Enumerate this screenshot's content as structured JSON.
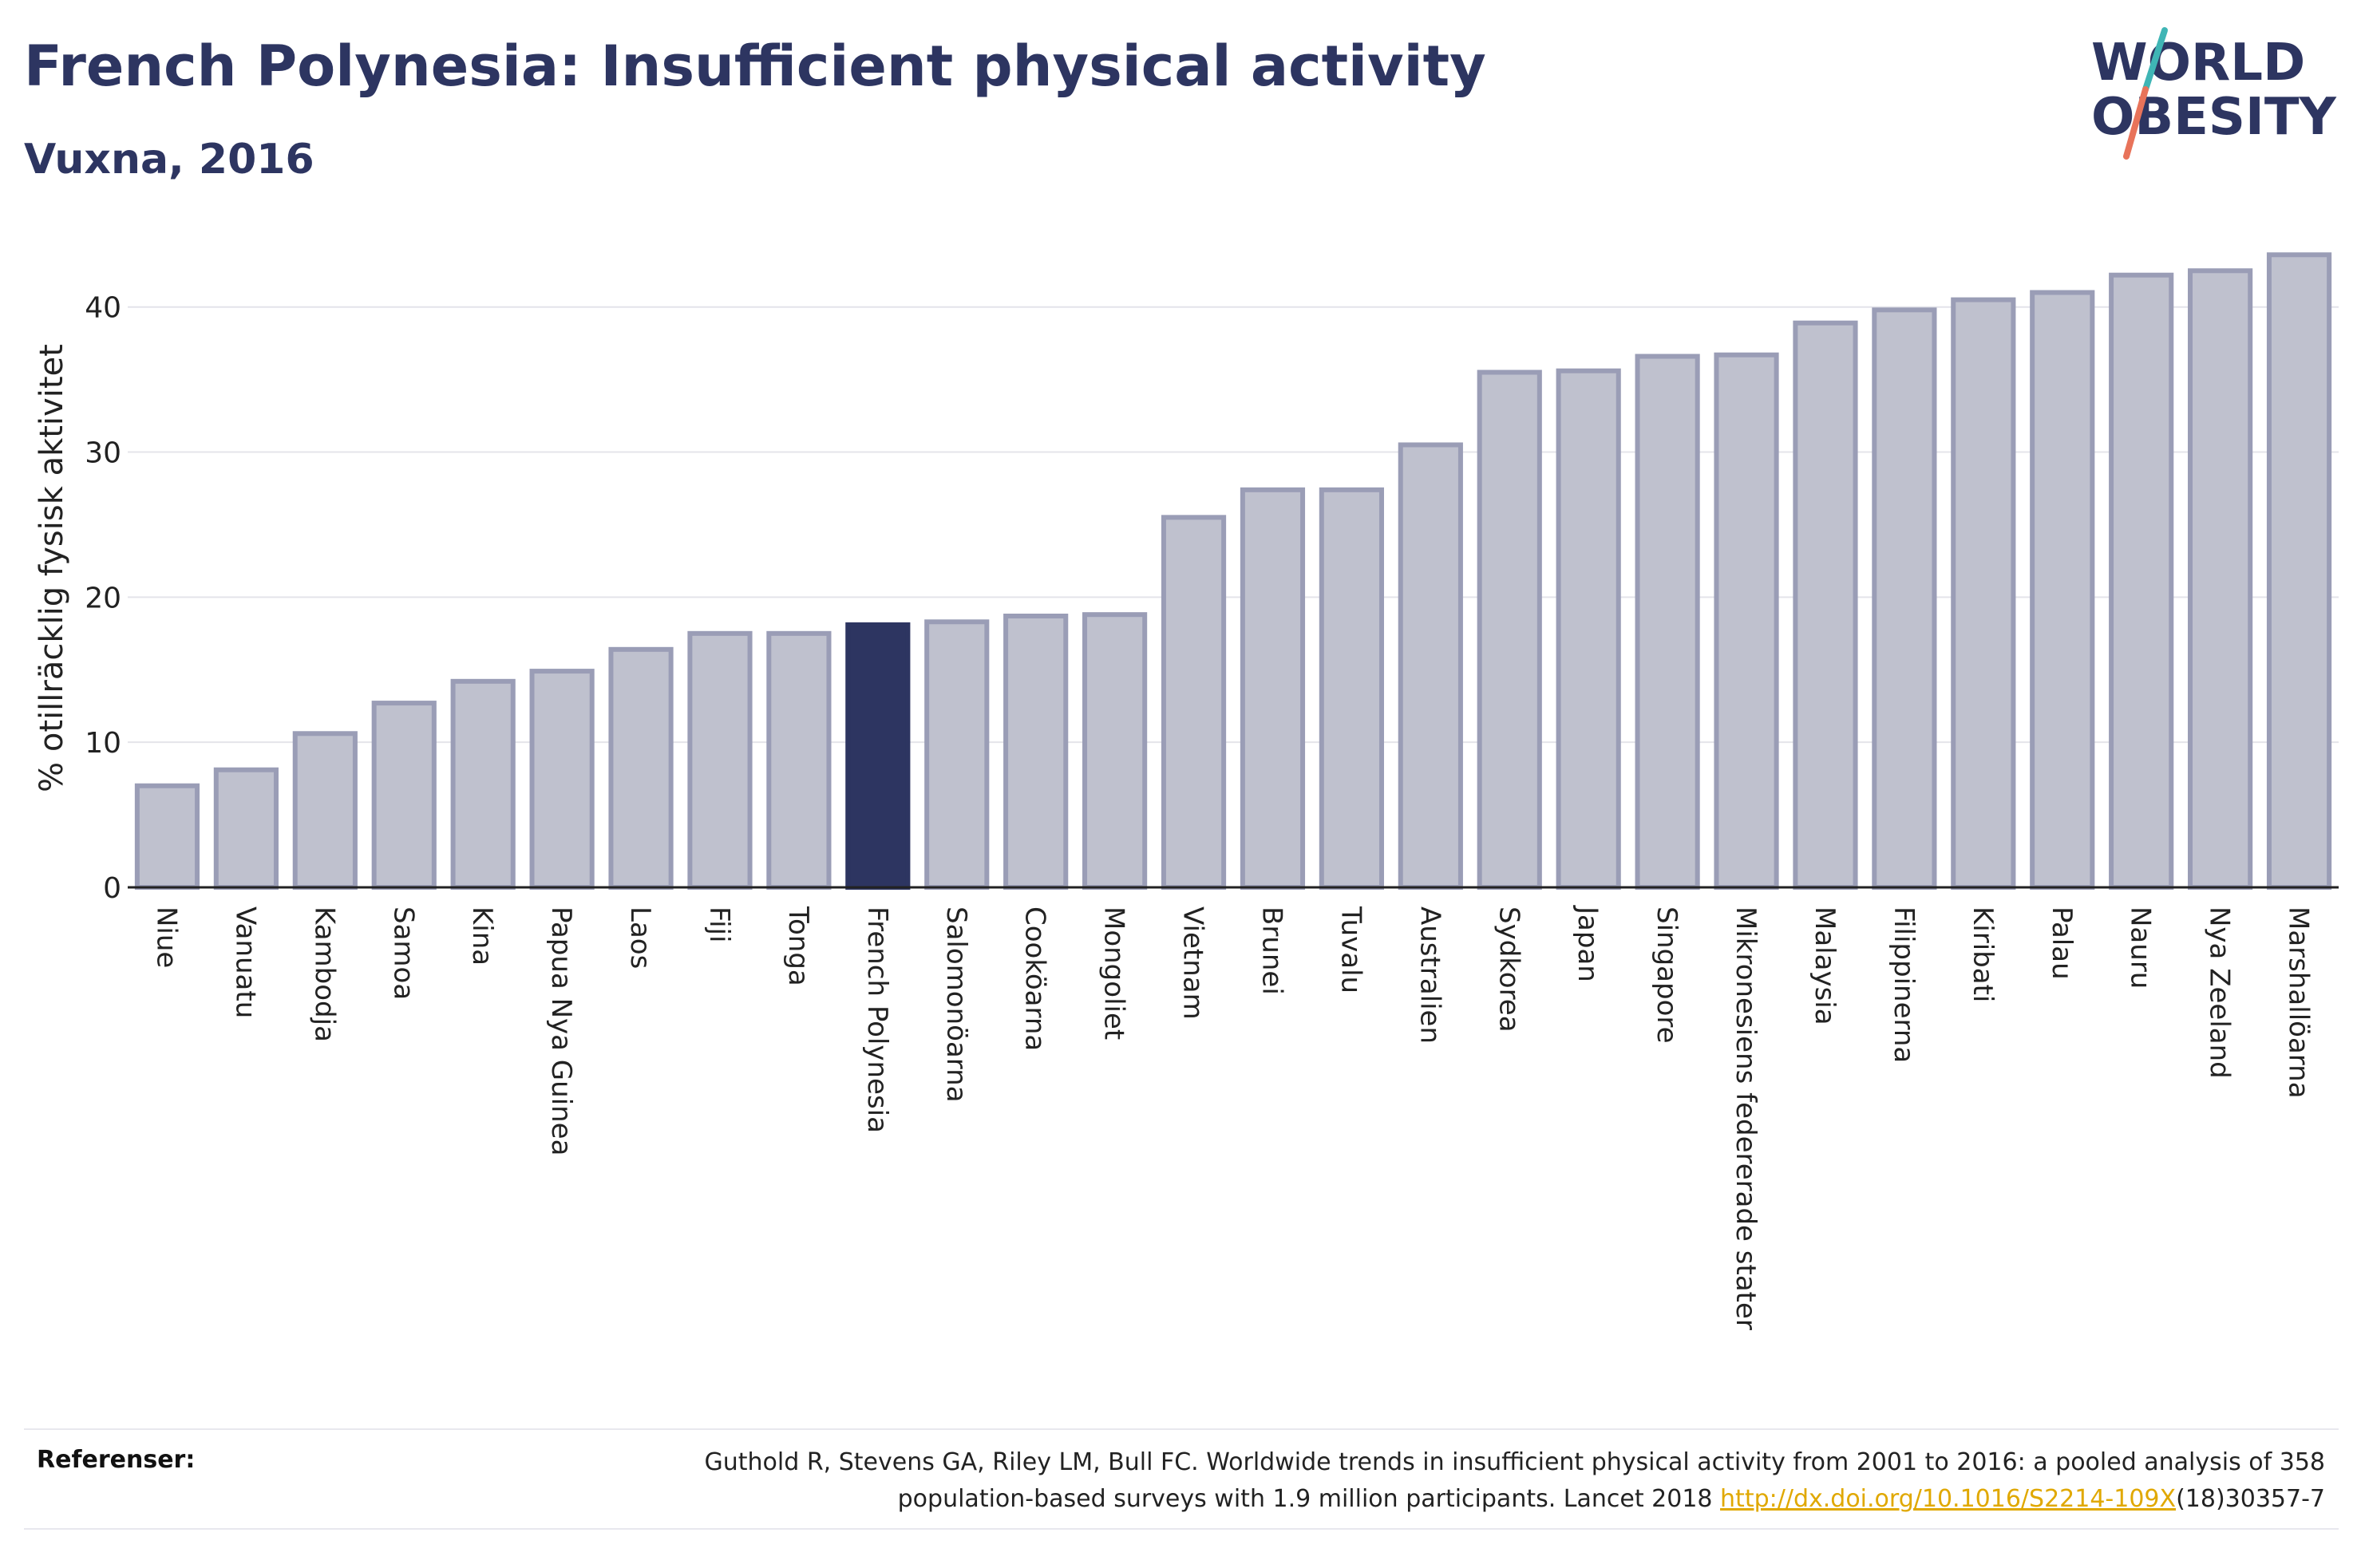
{
  "header": {
    "title": "French Polynesia: Insufficient physical activity",
    "subtitle": "Vuxna, 2016"
  },
  "logo": {
    "line1": "WORLD",
    "line2": "OBESITY",
    "slash_colors": [
      "#3fb5b5",
      "#e8735a"
    ]
  },
  "colors": {
    "highlight": "#2d3561",
    "bar": "#bfc1ce",
    "bar_border": "#9a9db6",
    "text": "#2d3561"
  },
  "chart_data": {
    "type": "bar",
    "title": "French Polynesia: Insufficient physical activity",
    "subtitle": "Vuxna, 2016",
    "ylabel": "% otillräcklig fysisk aktivitet",
    "xlabel": "",
    "ylim": [
      0,
      44
    ],
    "yticks": [
      0,
      10,
      20,
      30,
      40
    ],
    "grid": true,
    "highlight": "French Polynesia",
    "categories": [
      "Niue",
      "Vanuatu",
      "Kambodja",
      "Samoa",
      "Kina",
      "Papua Nya Guinea",
      "Laos",
      "Fiji",
      "Tonga",
      "French Polynesia",
      "Salomonöarna",
      "Cooköarna",
      "Mongoliet",
      "Vietnam",
      "Brunei",
      "Tuvalu",
      "Australien",
      "Sydkorea",
      "Japan",
      "Singapore",
      "Mikronesiens federerade stater",
      "Malaysia",
      "Filippinerna",
      "Kiribati",
      "Palau",
      "Nauru",
      "Nya Zeeland",
      "Marshallöarna"
    ],
    "values": [
      7.0,
      8.1,
      10.6,
      12.7,
      14.2,
      14.9,
      16.4,
      17.5,
      17.5,
      18.1,
      18.3,
      18.7,
      18.8,
      25.5,
      27.4,
      27.4,
      30.5,
      35.5,
      35.6,
      36.6,
      36.7,
      38.9,
      39.8,
      40.5,
      41.0,
      42.2,
      42.5,
      43.6
    ]
  },
  "references": {
    "label": "Referenser:",
    "text_line1": "Guthold R, Stevens GA, Riley LM, Bull FC. Worldwide trends in insufficient physical activity from 2001 to 2016: a pooled analysis of 358",
    "text_line2_before": "population-based surveys with 1.9 million participants. Lancet 2018 ",
    "link": "http://dx.doi.org/10.1016/S2214-109X",
    "text_line2_after": "(18)30357-7"
  }
}
